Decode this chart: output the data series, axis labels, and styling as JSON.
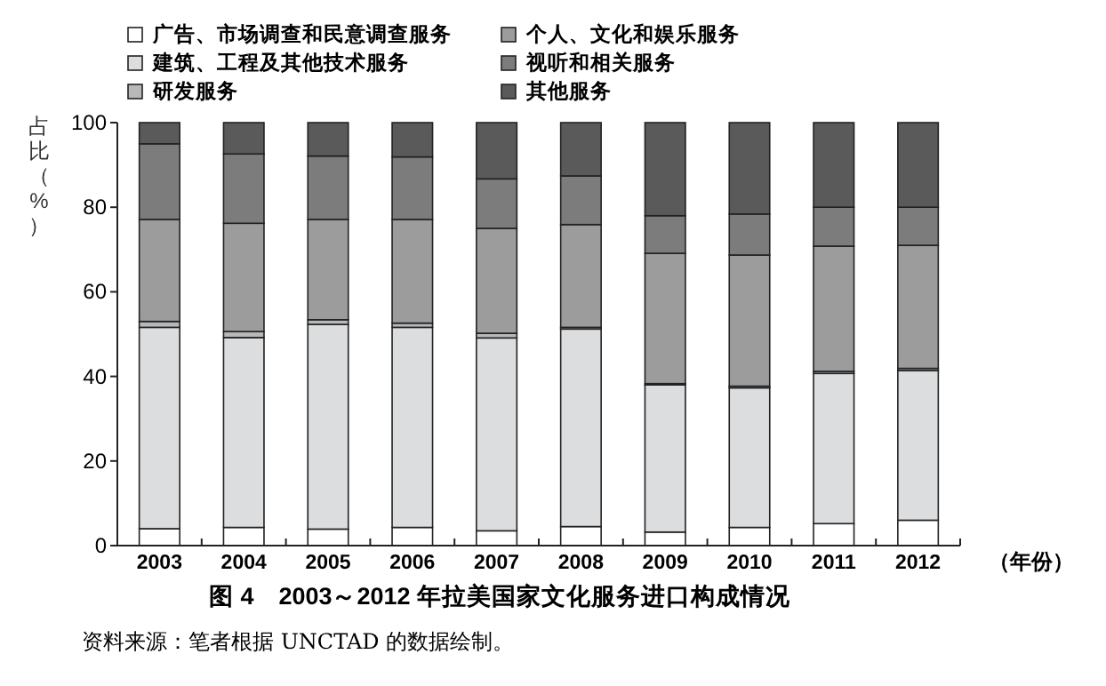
{
  "chart_data": {
    "type": "bar",
    "stacked": true,
    "title": "图 4　2003～2012 年拉美国家文化服务进口构成情况",
    "ylabel": "占比（%）",
    "xlabel": "（年份）",
    "annotations": [
      "资料来源：笔者根据 UNCTAD 的数据绘制。"
    ],
    "categories": [
      "2003",
      "2004",
      "2005",
      "2006",
      "2007",
      "2008",
      "2009",
      "2010",
      "2011",
      "2012"
    ],
    "ylim": [
      0,
      100
    ],
    "yticks": [
      0,
      20,
      40,
      60,
      80,
      100
    ],
    "grid": false,
    "legend": "top",
    "series": [
      {
        "name": "广告、市场调查和民意调查服务",
        "color": "#ffffff",
        "values": [
          4,
          4.3,
          3.9,
          4.3,
          3.5,
          4.5,
          3.2,
          4.3,
          5.2,
          6
        ]
      },
      {
        "name": "建筑、工程及其他技术服务",
        "color": "#dcdddf",
        "values": [
          47.6,
          44.9,
          48.4,
          47.3,
          45.6,
          46.7,
          34.8,
          33,
          35.5,
          35.4
        ]
      },
      {
        "name": "研发服务",
        "color": "#b8b8b8",
        "values": [
          1.4,
          1.4,
          1.1,
          1,
          1.1,
          0.4,
          0.3,
          0.4,
          0.5,
          0.5
        ]
      },
      {
        "name": "个人、文化和娱乐服务",
        "color": "#9c9c9c",
        "values": [
          24.1,
          25.6,
          23.7,
          24.5,
          24.8,
          24.3,
          30.8,
          31,
          29.6,
          29.1
        ]
      },
      {
        "name": "视听和相关服务",
        "color": "#7c7c7c",
        "values": [
          17.9,
          16.4,
          15,
          14.8,
          11.7,
          11.5,
          8.9,
          9.7,
          9.2,
          9
        ]
      },
      {
        "name": "其他服务",
        "color": "#5a5a5a",
        "values": [
          5,
          7.4,
          7.9,
          8.1,
          13.3,
          12.6,
          22,
          21.6,
          20,
          20
        ]
      }
    ]
  }
}
